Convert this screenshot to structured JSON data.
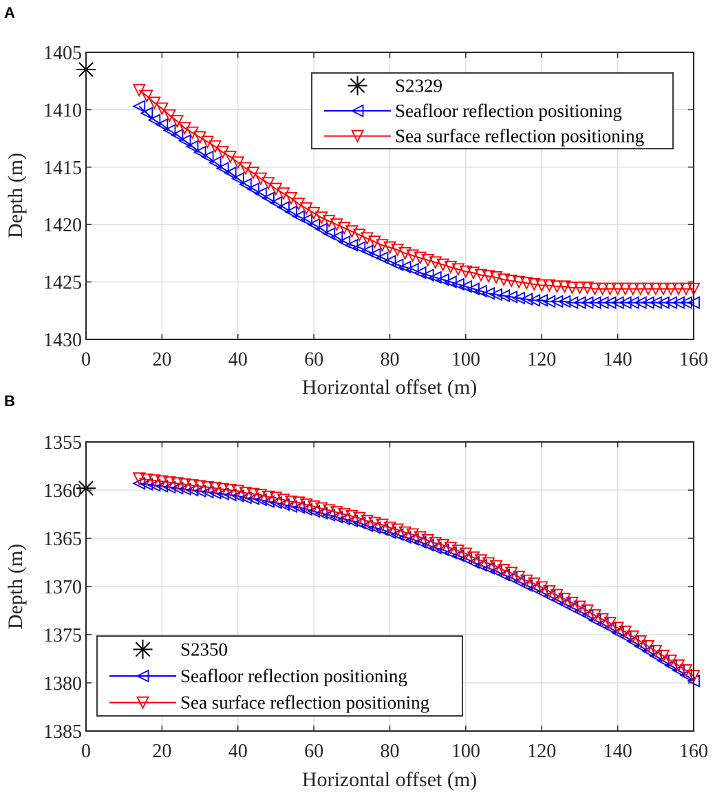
{
  "chart_data": [
    {
      "panel": "A",
      "type": "line",
      "xlabel": "Horizontal offset (m)",
      "ylabel": "Depth (m)",
      "xlim": [
        0,
        160
      ],
      "ylim": [
        1405,
        1430
      ],
      "y_reversed": true,
      "xticks": [
        0,
        20,
        40,
        60,
        80,
        100,
        120,
        140,
        160
      ],
      "yticks": [
        1405,
        1410,
        1415,
        1420,
        1425,
        1430
      ],
      "grid": true,
      "legend_position": "top-right",
      "station": {
        "name": "S2329",
        "x": 0,
        "y": 1406.5,
        "color": "#000000",
        "marker": "asterisk"
      },
      "series": [
        {
          "name": "Seafloor reflection positioning",
          "color": "#0000ff",
          "marker": "triangle-left",
          "x": [
            14,
            16,
            18,
            20,
            22,
            24,
            26,
            28,
            30,
            32,
            34,
            36,
            38,
            40,
            42,
            44,
            46,
            48,
            50,
            52,
            54,
            56,
            58,
            60,
            62,
            64,
            66,
            68,
            70,
            72,
            74,
            76,
            78,
            80,
            82,
            84,
            86,
            88,
            90,
            92,
            94,
            96,
            98,
            100,
            102,
            104,
            106,
            108,
            110,
            112,
            114,
            116,
            118,
            120,
            122,
            124,
            126,
            128,
            130,
            132,
            134,
            136,
            138,
            140,
            142,
            144,
            146,
            148,
            150,
            152,
            154,
            156,
            158,
            160
          ],
          "y": [
            1409.7,
            1410.3,
            1410.9,
            1411.3,
            1411.8,
            1412.2,
            1412.7,
            1413.2,
            1413.7,
            1414.1,
            1414.6,
            1415.1,
            1415.5,
            1416.0,
            1416.5,
            1416.9,
            1417.3,
            1417.7,
            1418.1,
            1418.5,
            1418.9,
            1419.3,
            1419.6,
            1420.0,
            1420.4,
            1420.8,
            1421.1,
            1421.5,
            1421.8,
            1422.0,
            1422.3,
            1422.6,
            1422.9,
            1423.2,
            1423.5,
            1423.7,
            1423.9,
            1424.2,
            1424.4,
            1424.6,
            1424.8,
            1425.0,
            1425.2,
            1425.4,
            1425.6,
            1425.8,
            1426.0,
            1426.1,
            1426.2,
            1426.3,
            1426.4,
            1426.5,
            1426.6,
            1426.6,
            1426.7,
            1426.7,
            1426.7,
            1426.8,
            1426.8,
            1426.8,
            1426.8,
            1426.8,
            1426.8,
            1426.8,
            1426.8,
            1426.8,
            1426.8,
            1426.8,
            1426.8,
            1426.8,
            1426.8,
            1426.8,
            1426.8,
            1426.8
          ]
        },
        {
          "name": "Sea surface reflection positioning",
          "color": "#ff0000",
          "marker": "triangle-down",
          "x": [
            14,
            16,
            18,
            20,
            22,
            24,
            26,
            28,
            30,
            32,
            34,
            36,
            38,
            40,
            42,
            44,
            46,
            48,
            50,
            52,
            54,
            56,
            58,
            60,
            62,
            64,
            66,
            68,
            70,
            72,
            74,
            76,
            78,
            80,
            82,
            84,
            86,
            88,
            90,
            92,
            94,
            96,
            98,
            100,
            102,
            104,
            106,
            108,
            110,
            112,
            114,
            116,
            118,
            120,
            122,
            124,
            126,
            128,
            130,
            132,
            134,
            136,
            138,
            140,
            142,
            144,
            146,
            148,
            150,
            152,
            154,
            156,
            158,
            160
          ],
          "y": [
            1408.3,
            1408.8,
            1409.4,
            1409.9,
            1410.5,
            1411.0,
            1411.6,
            1412.0,
            1412.4,
            1412.8,
            1413.2,
            1413.7,
            1414.1,
            1414.6,
            1415.1,
            1415.5,
            1416.0,
            1416.4,
            1416.9,
            1417.3,
            1417.7,
            1418.2,
            1418.6,
            1419.0,
            1419.4,
            1419.7,
            1420.0,
            1420.3,
            1420.6,
            1420.9,
            1421.2,
            1421.5,
            1421.8,
            1422.0,
            1422.2,
            1422.5,
            1422.7,
            1422.9,
            1423.1,
            1423.3,
            1423.5,
            1423.7,
            1423.9,
            1424.1,
            1424.2,
            1424.4,
            1424.5,
            1424.6,
            1424.8,
            1424.9,
            1425.0,
            1425.1,
            1425.2,
            1425.3,
            1425.3,
            1425.4,
            1425.4,
            1425.5,
            1425.5,
            1425.5,
            1425.6,
            1425.6,
            1425.6,
            1425.6,
            1425.6,
            1425.6,
            1425.6,
            1425.6,
            1425.6,
            1425.6,
            1425.6,
            1425.6,
            1425.6,
            1425.6
          ]
        }
      ]
    },
    {
      "panel": "B",
      "type": "line",
      "xlabel": "Horizontal offset (m)",
      "ylabel": "Depth (m)",
      "xlim": [
        0,
        160
      ],
      "ylim": [
        1355,
        1385
      ],
      "y_reversed": true,
      "xticks": [
        0,
        20,
        40,
        60,
        80,
        100,
        120,
        140,
        160
      ],
      "yticks": [
        1355,
        1360,
        1365,
        1370,
        1375,
        1380,
        1385
      ],
      "grid": true,
      "legend_position": "bottom-left",
      "station": {
        "name": "S2350",
        "x": 0,
        "y": 1359.8,
        "color": "#000000",
        "marker": "asterisk"
      },
      "series": [
        {
          "name": "Seafloor reflection positioning",
          "color": "#0000ff",
          "marker": "triangle-left",
          "x": [
            14,
            16,
            18,
            20,
            22,
            24,
            26,
            28,
            30,
            32,
            34,
            36,
            38,
            40,
            42,
            44,
            46,
            48,
            50,
            52,
            54,
            56,
            58,
            60,
            62,
            64,
            66,
            68,
            70,
            72,
            74,
            76,
            78,
            80,
            82,
            84,
            86,
            88,
            90,
            92,
            94,
            96,
            98,
            100,
            102,
            104,
            106,
            108,
            110,
            112,
            114,
            116,
            118,
            120,
            122,
            124,
            126,
            128,
            130,
            132,
            134,
            136,
            138,
            140,
            142,
            144,
            146,
            148,
            150,
            152,
            154,
            156,
            158,
            160
          ],
          "y": [
            1359.3,
            1359.4,
            1359.5,
            1359.6,
            1359.7,
            1359.8,
            1359.9,
            1360.0,
            1360.1,
            1360.2,
            1360.3,
            1360.4,
            1360.5,
            1360.6,
            1360.8,
            1360.9,
            1361.0,
            1361.2,
            1361.3,
            1361.5,
            1361.7,
            1361.8,
            1362.0,
            1362.2,
            1362.4,
            1362.6,
            1362.8,
            1363.0,
            1363.2,
            1363.4,
            1363.7,
            1363.9,
            1364.1,
            1364.4,
            1364.6,
            1364.9,
            1365.1,
            1365.4,
            1365.7,
            1366.0,
            1366.2,
            1366.5,
            1366.8,
            1367.1,
            1367.5,
            1367.8,
            1368.1,
            1368.4,
            1368.8,
            1369.1,
            1369.5,
            1369.9,
            1370.2,
            1370.6,
            1371.0,
            1371.4,
            1371.8,
            1372.2,
            1372.6,
            1373.0,
            1373.5,
            1373.9,
            1374.3,
            1374.8,
            1375.2,
            1375.7,
            1376.2,
            1376.7,
            1377.2,
            1377.7,
            1378.2,
            1378.7,
            1379.2,
            1379.8
          ]
        },
        {
          "name": "Sea surface reflection positioning",
          "color": "#ff0000",
          "marker": "triangle-down",
          "x": [
            14,
            16,
            18,
            20,
            22,
            24,
            26,
            28,
            30,
            32,
            34,
            36,
            38,
            40,
            42,
            44,
            46,
            48,
            50,
            52,
            54,
            56,
            58,
            60,
            62,
            64,
            66,
            68,
            70,
            72,
            74,
            76,
            78,
            80,
            82,
            84,
            86,
            88,
            90,
            92,
            94,
            96,
            98,
            100,
            102,
            104,
            106,
            108,
            110,
            112,
            114,
            116,
            118,
            120,
            122,
            124,
            126,
            128,
            130,
            132,
            134,
            136,
            138,
            140,
            142,
            144,
            146,
            148,
            150,
            152,
            154,
            156,
            158,
            160
          ],
          "y": [
            1358.8,
            1358.9,
            1359.0,
            1359.1,
            1359.2,
            1359.3,
            1359.4,
            1359.5,
            1359.6,
            1359.7,
            1359.8,
            1359.9,
            1360.0,
            1360.1,
            1360.3,
            1360.4,
            1360.5,
            1360.7,
            1360.8,
            1361.0,
            1361.2,
            1361.3,
            1361.5,
            1361.7,
            1361.9,
            1362.1,
            1362.3,
            1362.5,
            1362.7,
            1362.9,
            1363.2,
            1363.4,
            1363.6,
            1363.9,
            1364.1,
            1364.4,
            1364.6,
            1364.9,
            1365.2,
            1365.5,
            1365.7,
            1366.0,
            1366.3,
            1366.6,
            1367.0,
            1367.3,
            1367.6,
            1367.9,
            1368.3,
            1368.6,
            1369.0,
            1369.4,
            1369.7,
            1370.1,
            1370.5,
            1370.9,
            1371.3,
            1371.7,
            1372.1,
            1372.5,
            1373.0,
            1373.4,
            1373.8,
            1374.3,
            1374.7,
            1375.2,
            1375.7,
            1376.2,
            1376.7,
            1377.2,
            1377.7,
            1378.2,
            1378.7,
            1379.3
          ]
        }
      ]
    }
  ]
}
